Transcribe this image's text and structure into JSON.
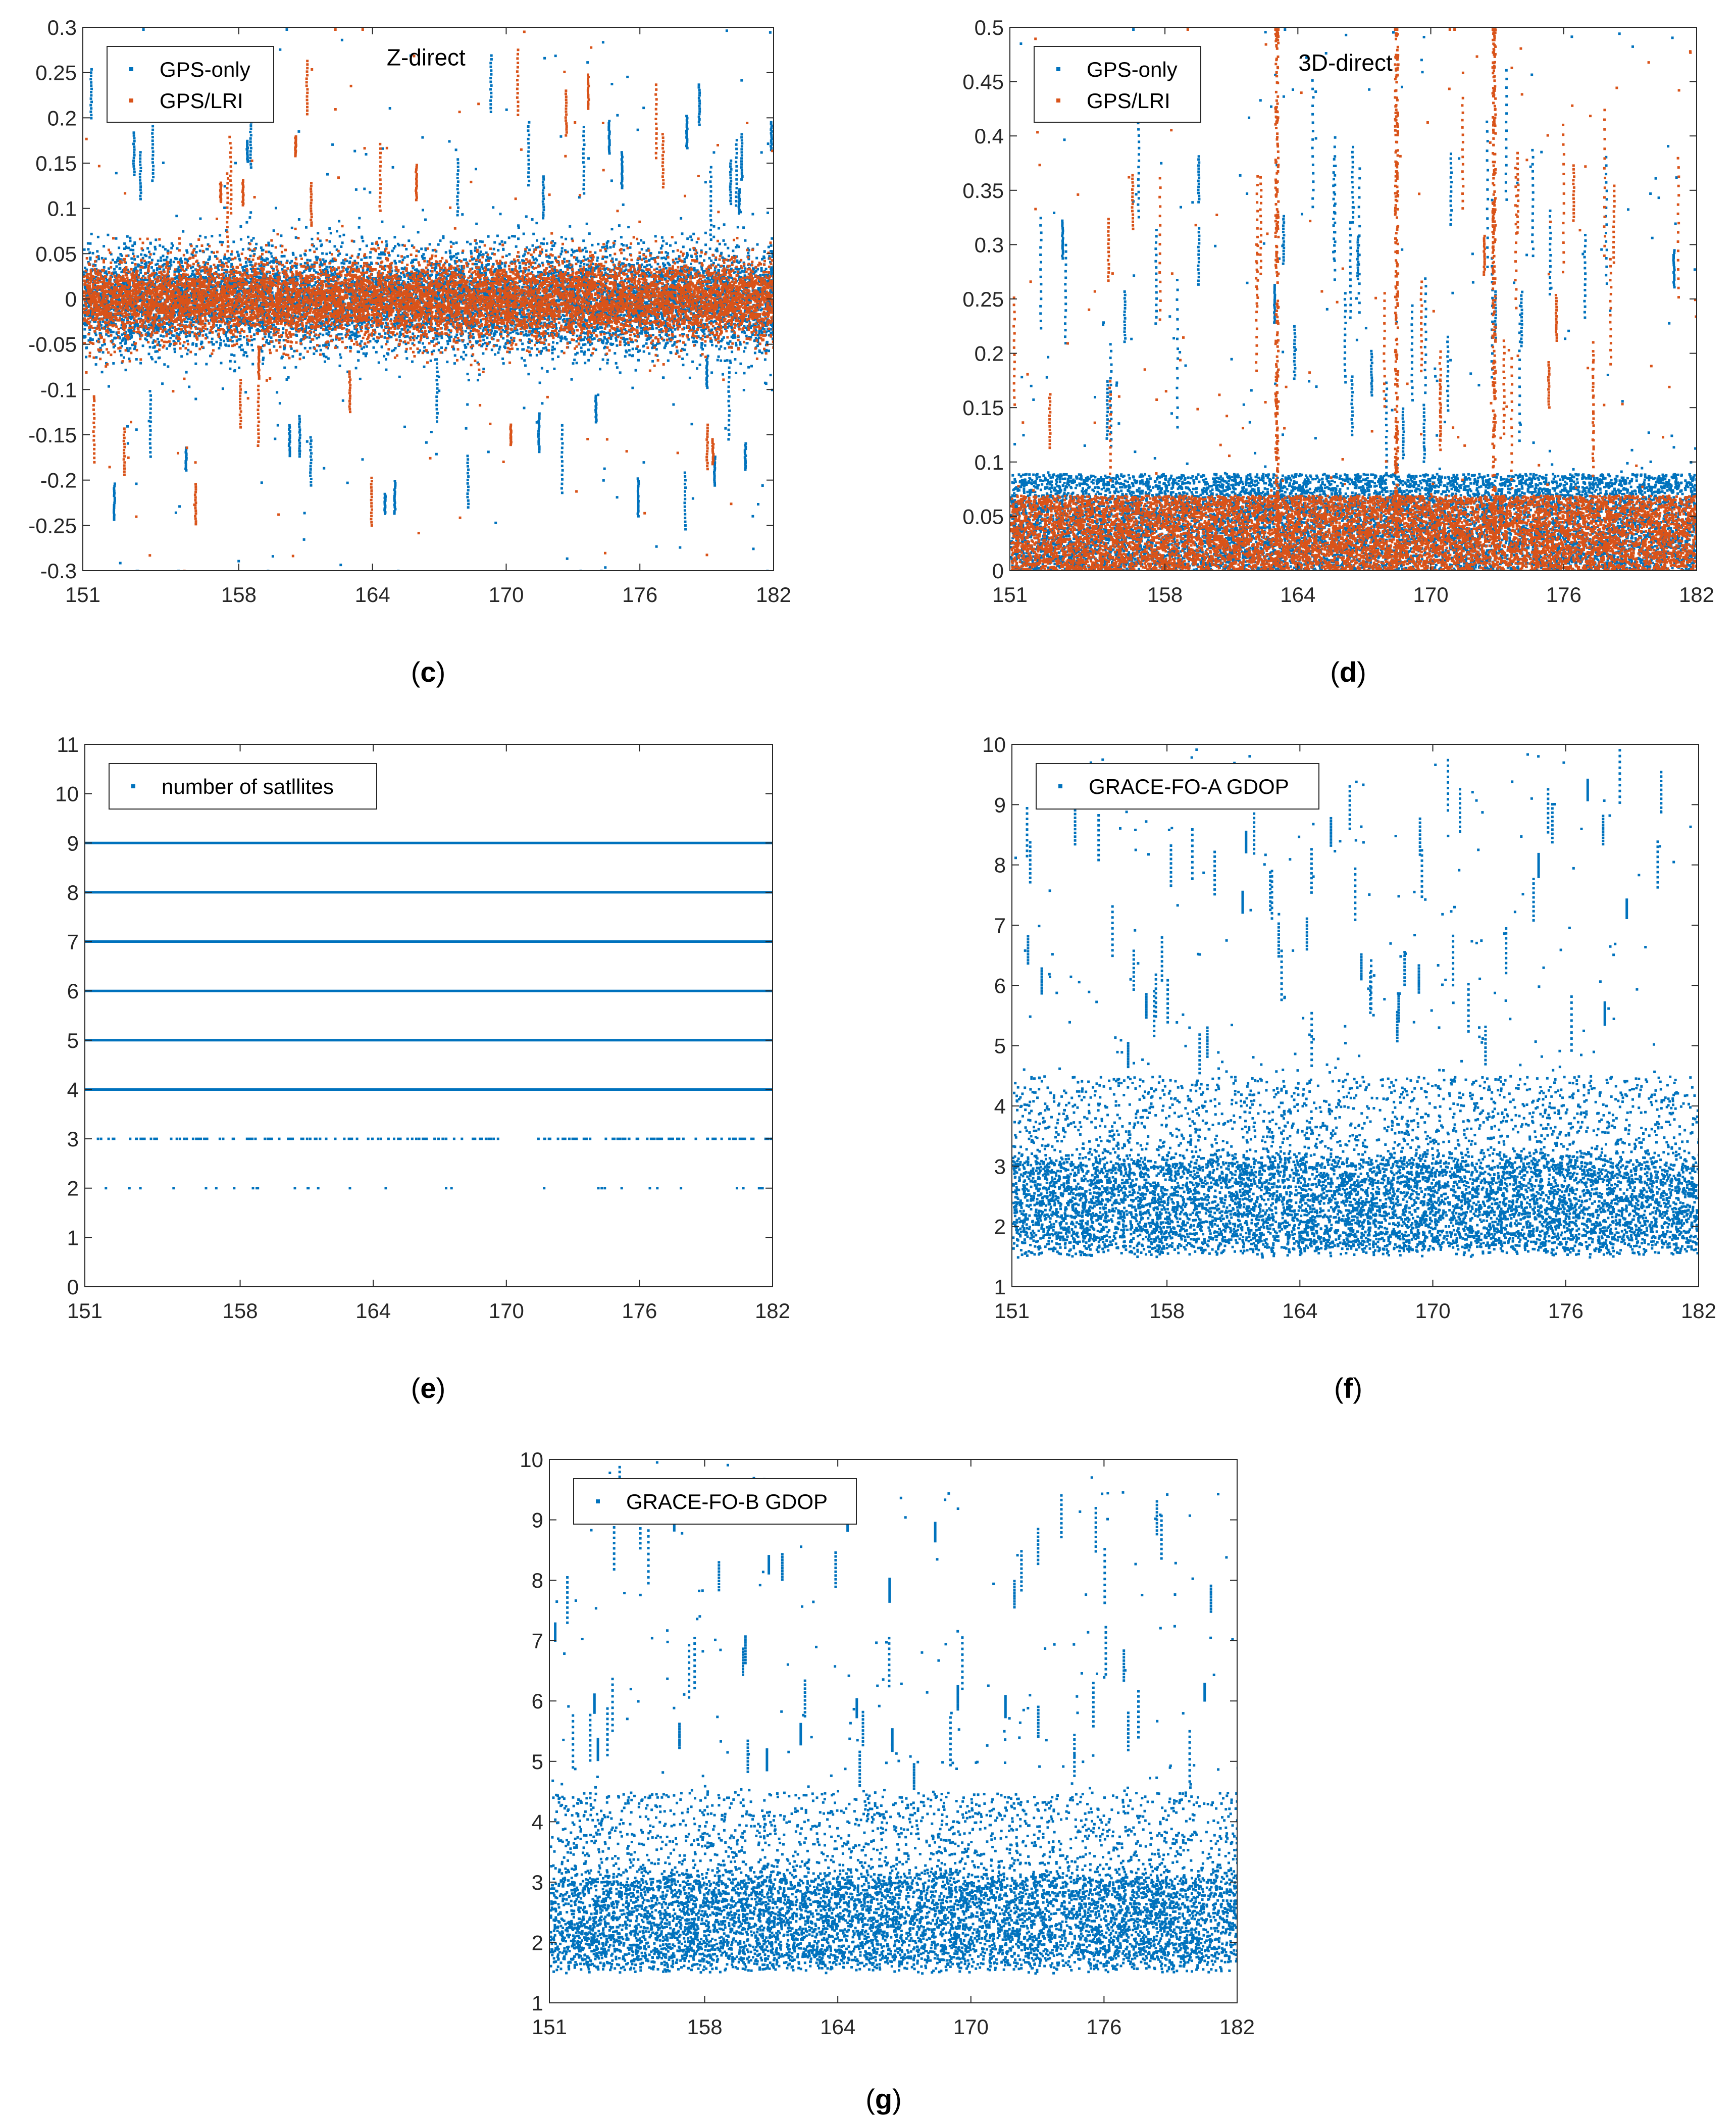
{
  "figure": {
    "colors": {
      "gps_only": "#0072BD",
      "gps_lri": "#D95319",
      "axis": "#262626"
    },
    "panels": [
      {
        "id": "c",
        "caption": {
          "open": "(",
          "letter": "c",
          "close": ")"
        },
        "chart_data": {
          "type": "scatter",
          "title": "",
          "annotation": "Z-direct",
          "xlabel": "",
          "ylabel": "",
          "xlim": [
            151,
            182
          ],
          "ylim": [
            -0.3,
            0.3
          ],
          "xticks": [
            151,
            158,
            164,
            170,
            176,
            182
          ],
          "yticks": [
            -0.3,
            -0.25,
            -0.2,
            -0.15,
            -0.1,
            -0.05,
            0,
            0.05,
            0.1,
            0.15,
            0.2,
            0.25,
            0.3
          ],
          "ytick_labels": [
            "-0.3",
            "-0.25",
            "-0.2",
            "-0.15",
            "-0.1",
            "-0.05",
            "0",
            "0.05",
            "0.1",
            "0.15",
            "0.2",
            "0.25",
            "0.3"
          ],
          "legend": [
            "GPS-only",
            "GPS/LRI"
          ],
          "legend_location": "top-left",
          "series": [
            {
              "name": "GPS-only",
              "color_key": "gps_only",
              "core_center": 0,
              "core_spread": 0.052,
              "spike_min": 0.06,
              "spike_max": 0.32,
              "spike_side": "both",
              "spike_count": 170,
              "spike_columns": 40
            },
            {
              "name": "GPS/LRI",
              "color_key": "gps_lri",
              "core_center": 0,
              "core_spread": 0.04,
              "spike_min": 0.05,
              "spike_max": 0.32,
              "spike_side": "both",
              "spike_count": 110,
              "spike_columns": 26
            }
          ]
        }
      },
      {
        "id": "d",
        "caption": {
          "open": "(",
          "letter": "d",
          "close": ")"
        },
        "chart_data": {
          "type": "scatter",
          "title": "",
          "annotation": "3D-direct",
          "xlabel": "",
          "ylabel": "",
          "xlim": [
            151,
            182
          ],
          "ylim": [
            0,
            0.5
          ],
          "xticks": [
            151,
            158,
            164,
            170,
            176,
            182
          ],
          "yticks": [
            0,
            0.05,
            0.1,
            0.15,
            0.2,
            0.25,
            0.3,
            0.35,
            0.4,
            0.45,
            0.5
          ],
          "ytick_labels": [
            "0",
            "0.05",
            "0.1",
            "0.15",
            "0.2",
            "0.25",
            "0.3",
            "0.35",
            "0.4",
            "0.45",
            "0.5"
          ],
          "legend": [
            "GPS-only",
            "GPS/LRI"
          ],
          "legend_location": "top-left",
          "series": [
            {
              "name": "GPS-only",
              "color_key": "gps_only",
              "core_center": 0.045,
              "core_spread": 0.045,
              "spike_min": 0.08,
              "spike_max": 0.52,
              "spike_side": "up",
              "spike_count": 170,
              "spike_columns": 42
            },
            {
              "name": "GPS/LRI",
              "color_key": "gps_lri",
              "core_center": 0.035,
              "core_spread": 0.035,
              "spike_min": 0.06,
              "spike_max": 0.52,
              "spike_side": "up",
              "spike_count": 120,
              "spike_columns": 30,
              "vertical_streaks": [
                163.0,
                168.4,
                172.8
              ]
            }
          ]
        }
      },
      {
        "id": "e",
        "caption": {
          "open": "(",
          "letter": "e",
          "close": ")"
        },
        "chart_data": {
          "type": "scatter",
          "title": "",
          "xlabel": "",
          "ylabel": "",
          "xlim": [
            151,
            182
          ],
          "ylim": [
            0,
            11
          ],
          "xticks": [
            151,
            158,
            164,
            170,
            176,
            182
          ],
          "yticks": [
            0,
            1,
            2,
            3,
            4,
            5,
            6,
            7,
            8,
            9,
            10,
            11
          ],
          "ytick_labels": [
            "0",
            "1",
            "2",
            "3",
            "4",
            "5",
            "6",
            "7",
            "8",
            "9",
            "10",
            "11"
          ],
          "legend": [
            "number of satllites"
          ],
          "legend_location": "top-left",
          "series": [
            {
              "name": "number of satllites",
              "color_key": "gps_only",
              "levels": [
                {
                  "value": 9,
                  "density": "continuous"
                },
                {
                  "value": 8,
                  "density": "continuous"
                },
                {
                  "value": 7,
                  "density": "continuous"
                },
                {
                  "value": 6,
                  "density": "continuous"
                },
                {
                  "value": 5,
                  "density": "continuous"
                },
                {
                  "value": 4,
                  "density": "continuous"
                },
                {
                  "value": 3,
                  "density": "dense-sparse"
                },
                {
                  "value": 2,
                  "density": "sparse"
                }
              ]
            }
          ]
        }
      },
      {
        "id": "f",
        "caption": {
          "open": "(",
          "letter": "f",
          "close": ")"
        },
        "chart_data": {
          "type": "scatter",
          "title": "",
          "xlabel": "",
          "ylabel": "",
          "xlim": [
            151,
            182
          ],
          "ylim": [
            1,
            10
          ],
          "xticks": [
            151,
            158,
            164,
            170,
            176,
            182
          ],
          "yticks": [
            1,
            2,
            3,
            4,
            5,
            6,
            7,
            8,
            9,
            10
          ],
          "ytick_labels": [
            "1",
            "2",
            "3",
            "4",
            "5",
            "6",
            "7",
            "8",
            "9",
            "10"
          ],
          "legend": [
            "GRACE-FO-A GDOP"
          ],
          "legend_location": "top-left",
          "series": [
            {
              "name": "GRACE-FO-A GDOP",
              "color_key": "gps_only",
              "core_min": 1.5,
              "core_max": 3.0,
              "mid_max": 4.5,
              "spike_max": 10,
              "spike_count": 190,
              "spike_columns": 60
            }
          ]
        }
      },
      {
        "id": "g",
        "caption": {
          "open": "(",
          "letter": "g",
          "close": ")"
        },
        "chart_data": {
          "type": "scatter",
          "title": "",
          "xlabel": "",
          "ylabel": "",
          "xlim": [
            151,
            182
          ],
          "ylim": [
            1,
            10
          ],
          "xticks": [
            151,
            158,
            164,
            170,
            176,
            182
          ],
          "yticks": [
            1,
            2,
            3,
            4,
            5,
            6,
            7,
            8,
            9,
            10
          ],
          "ytick_labels": [
            "1",
            "2",
            "3",
            "4",
            "5",
            "6",
            "7",
            "8",
            "9",
            "10"
          ],
          "legend": [
            "GRACE-FO-B GDOP"
          ],
          "legend_location": "top-left",
          "series": [
            {
              "name": "GRACE-FO-B GDOP",
              "color_key": "gps_only",
              "core_min": 1.5,
              "core_max": 3.0,
              "mid_max": 4.5,
              "spike_max": 10,
              "spike_count": 180,
              "spike_columns": 58
            }
          ]
        }
      }
    ]
  }
}
